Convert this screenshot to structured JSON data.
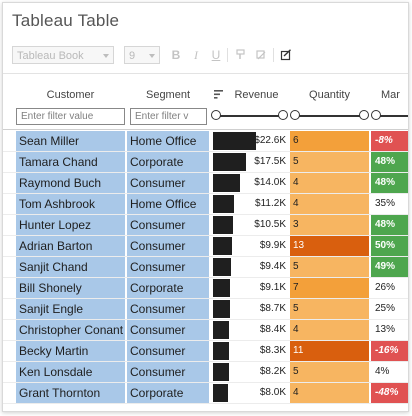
{
  "window": {
    "title": "Tableau Table"
  },
  "toolbar": {
    "font_select": "Tableau Book",
    "size_select": "9",
    "bold_label": "B",
    "italic_label": "I",
    "underline_label": "U",
    "icons": [
      "bold-icon",
      "italic-icon",
      "underline-icon",
      "paint-format-icon",
      "clear-format-icon",
      "edit-checkbox-icon"
    ]
  },
  "columns": {
    "customer": {
      "label": "Customer",
      "filter_placeholder": "Enter filter value"
    },
    "segment": {
      "label": "Segment",
      "filter_placeholder": "Enter filter v"
    },
    "revenue": {
      "label": "Revenue",
      "icon": "sort-bars-icon",
      "filter_range": [
        0,
        1
      ]
    },
    "quantity": {
      "label": "Quantity",
      "filter_range": [
        0,
        1
      ]
    },
    "margin": {
      "label": "Mar"
    }
  },
  "colors": {
    "selection": "#a9c8e8",
    "revenue_bar": "#1f1f1f",
    "qty_light": "#f7b561",
    "qty_mid": "#f3a03a",
    "qty_dark": "#d95f0e",
    "margin_green": "#4ea64e",
    "margin_red": "#e05252"
  },
  "rows": [
    {
      "customer": "Sean Miller",
      "segment": "Home Office",
      "revenue": "$22.6K",
      "revenue_value": 22.6,
      "quantity": "6",
      "quantity_value": 6,
      "margin": "-8%",
      "margin_value": -8
    },
    {
      "customer": "Tamara Chand",
      "segment": "Corporate",
      "revenue": "$17.5K",
      "revenue_value": 17.5,
      "quantity": "5",
      "quantity_value": 5,
      "margin": "48%",
      "margin_value": 48
    },
    {
      "customer": "Raymond Buch",
      "segment": "Consumer",
      "revenue": "$14.0K",
      "revenue_value": 14.0,
      "quantity": "4",
      "quantity_value": 4,
      "margin": "48%",
      "margin_value": 48
    },
    {
      "customer": "Tom Ashbrook",
      "segment": "Home Office",
      "revenue": "$11.2K",
      "revenue_value": 11.2,
      "quantity": "4",
      "quantity_value": 4,
      "margin": "35%",
      "margin_value": 35
    },
    {
      "customer": "Hunter Lopez",
      "segment": "Consumer",
      "revenue": "$10.5K",
      "revenue_value": 10.5,
      "quantity": "3",
      "quantity_value": 3,
      "margin": "48%",
      "margin_value": 48
    },
    {
      "customer": "Adrian Barton",
      "segment": "Consumer",
      "revenue": "$9.9K",
      "revenue_value": 9.9,
      "quantity": "13",
      "quantity_value": 13,
      "margin": "50%",
      "margin_value": 50
    },
    {
      "customer": "Sanjit Chand",
      "segment": "Consumer",
      "revenue": "$9.4K",
      "revenue_value": 9.4,
      "quantity": "5",
      "quantity_value": 5,
      "margin": "49%",
      "margin_value": 49
    },
    {
      "customer": "Bill Shonely",
      "segment": "Corporate",
      "revenue": "$9.1K",
      "revenue_value": 9.1,
      "quantity": "7",
      "quantity_value": 7,
      "margin": "26%",
      "margin_value": 26
    },
    {
      "customer": "Sanjit Engle",
      "segment": "Consumer",
      "revenue": "$8.7K",
      "revenue_value": 8.7,
      "quantity": "5",
      "quantity_value": 5,
      "margin": "25%",
      "margin_value": 25
    },
    {
      "customer": "Christopher Conant",
      "segment": "Consumer",
      "revenue": "$8.4K",
      "revenue_value": 8.4,
      "quantity": "4",
      "quantity_value": 4,
      "margin": "13%",
      "margin_value": 13
    },
    {
      "customer": "Becky Martin",
      "segment": "Consumer",
      "revenue": "$8.3K",
      "revenue_value": 8.3,
      "quantity": "11",
      "quantity_value": 11,
      "margin": "-16%",
      "margin_value": -16
    },
    {
      "customer": "Ken Lonsdale",
      "segment": "Consumer",
      "revenue": "$8.2K",
      "revenue_value": 8.2,
      "quantity": "5",
      "quantity_value": 5,
      "margin": "4%",
      "margin_value": 4
    },
    {
      "customer": "Grant Thornton",
      "segment": "Corporate",
      "revenue": "$8.0K",
      "revenue_value": 8.0,
      "quantity": "4",
      "quantity_value": 4,
      "margin": "-48%",
      "margin_value": -48
    }
  ]
}
